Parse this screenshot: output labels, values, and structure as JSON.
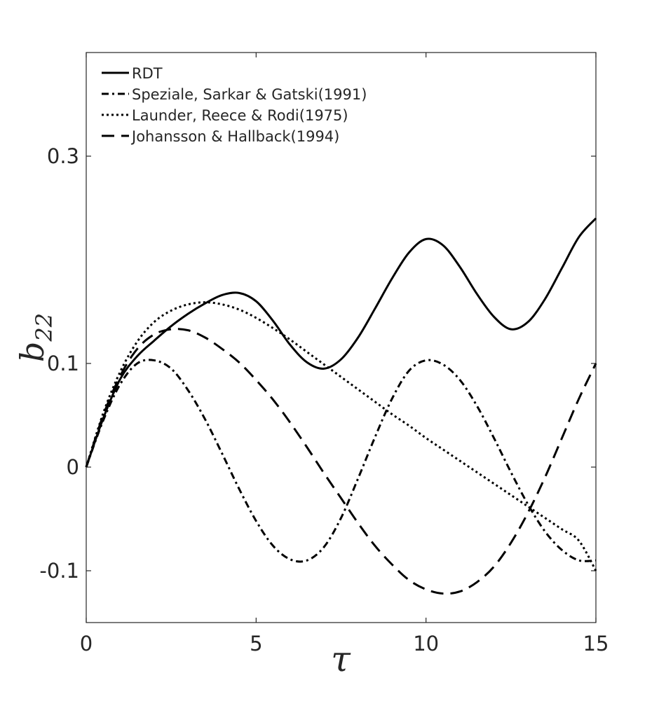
{
  "chart_data": {
    "type": "line",
    "title": "",
    "xlabel": "τ",
    "ylabel_main": "b",
    "ylabel_sub": "22",
    "xlim": [
      0,
      15
    ],
    "ylim": [
      -0.15,
      0.4
    ],
    "grid": false,
    "legend_position": "top-left",
    "xticks": [
      {
        "value": 0,
        "label": "0"
      },
      {
        "value": 5,
        "label": "5"
      },
      {
        "value": 10,
        "label": "10"
      },
      {
        "value": 15,
        "label": "15"
      }
    ],
    "yticks": [
      {
        "value": -0.1,
        "label": "-0.1"
      },
      {
        "value": 0,
        "label": "0"
      },
      {
        "value": 0.1,
        "label": "0.1"
      },
      {
        "value": 0.3,
        "label": "0.3"
      }
    ],
    "series": [
      {
        "name": "RDT",
        "dash": "solid",
        "x": [
          0,
          0.5,
          1,
          1.5,
          2,
          2.5,
          3,
          3.5,
          4,
          4.5,
          5,
          5.5,
          6,
          6.5,
          7,
          7.5,
          8,
          8.5,
          9,
          9.5,
          10,
          10.5,
          11,
          11.5,
          12,
          12.5,
          13,
          13.5,
          14,
          14.5,
          15
        ],
        "y": [
          0,
          0.047,
          0.085,
          0.107,
          0.122,
          0.136,
          0.148,
          0.158,
          0.166,
          0.168,
          0.16,
          0.141,
          0.118,
          0.101,
          0.095,
          0.104,
          0.125,
          0.153,
          0.182,
          0.207,
          0.22,
          0.214,
          0.193,
          0.167,
          0.145,
          0.133,
          0.14,
          0.162,
          0.192,
          0.222,
          0.24
        ]
      },
      {
        "name": "Speziale, Sarkar & Gatski(1991)",
        "dash": "dashdot",
        "x": [
          0,
          0.5,
          1,
          1.5,
          2,
          2.5,
          3,
          3.5,
          4,
          4.5,
          5,
          5.5,
          6,
          6.5,
          7,
          7.5,
          8,
          8.5,
          9,
          9.5,
          10,
          10.5,
          11,
          11.5,
          12,
          12.5,
          13,
          13.5,
          14,
          14.5,
          15
        ],
        "y": [
          0,
          0.045,
          0.08,
          0.1,
          0.103,
          0.095,
          0.074,
          0.046,
          0.013,
          -0.021,
          -0.052,
          -0.076,
          -0.089,
          -0.09,
          -0.077,
          -0.049,
          -0.011,
          0.029,
          0.066,
          0.093,
          0.103,
          0.099,
          0.084,
          0.059,
          0.028,
          -0.005,
          -0.036,
          -0.062,
          -0.08,
          -0.09,
          -0.09
        ]
      },
      {
        "name": "Launder, Reece & Rodi(1975)",
        "dash": "dotted",
        "x": [
          0,
          0.5,
          1,
          1.5,
          2,
          2.5,
          3,
          3.5,
          4,
          4.5,
          5,
          5.5,
          6,
          6.5,
          7,
          7.5,
          8,
          8.5,
          9,
          9.5,
          10,
          10.5,
          11,
          11.5,
          12,
          12.5,
          13,
          13.5,
          14,
          14.5,
          15
        ],
        "y": [
          0,
          0.052,
          0.092,
          0.121,
          0.14,
          0.151,
          0.157,
          0.159,
          0.157,
          0.152,
          0.144,
          0.134,
          0.123,
          0.111,
          0.099,
          0.087,
          0.075,
          0.063,
          0.051,
          0.04,
          0.028,
          0.017,
          0.006,
          -0.005,
          -0.016,
          -0.027,
          -0.038,
          -0.049,
          -0.06,
          -0.071,
          -0.1
        ]
      },
      {
        "name": "Johansson & Hallback(1994)",
        "dash": "dashed",
        "x": [
          0,
          0.5,
          1,
          1.5,
          2,
          2.5,
          3,
          3.5,
          4,
          4.5,
          5,
          5.5,
          6,
          6.5,
          7,
          7.5,
          8,
          8.5,
          9,
          9.5,
          10,
          10.5,
          11,
          11.5,
          12,
          12.5,
          13,
          13.5,
          14,
          14.5,
          15
        ],
        "y": [
          0,
          0.05,
          0.088,
          0.114,
          0.128,
          0.133,
          0.132,
          0.125,
          0.114,
          0.101,
          0.084,
          0.065,
          0.043,
          0.019,
          -0.006,
          -0.03,
          -0.054,
          -0.076,
          -0.094,
          -0.109,
          -0.118,
          -0.122,
          -0.12,
          -0.111,
          -0.096,
          -0.073,
          -0.044,
          -0.01,
          0.028,
          0.066,
          0.1
        ]
      }
    ]
  }
}
